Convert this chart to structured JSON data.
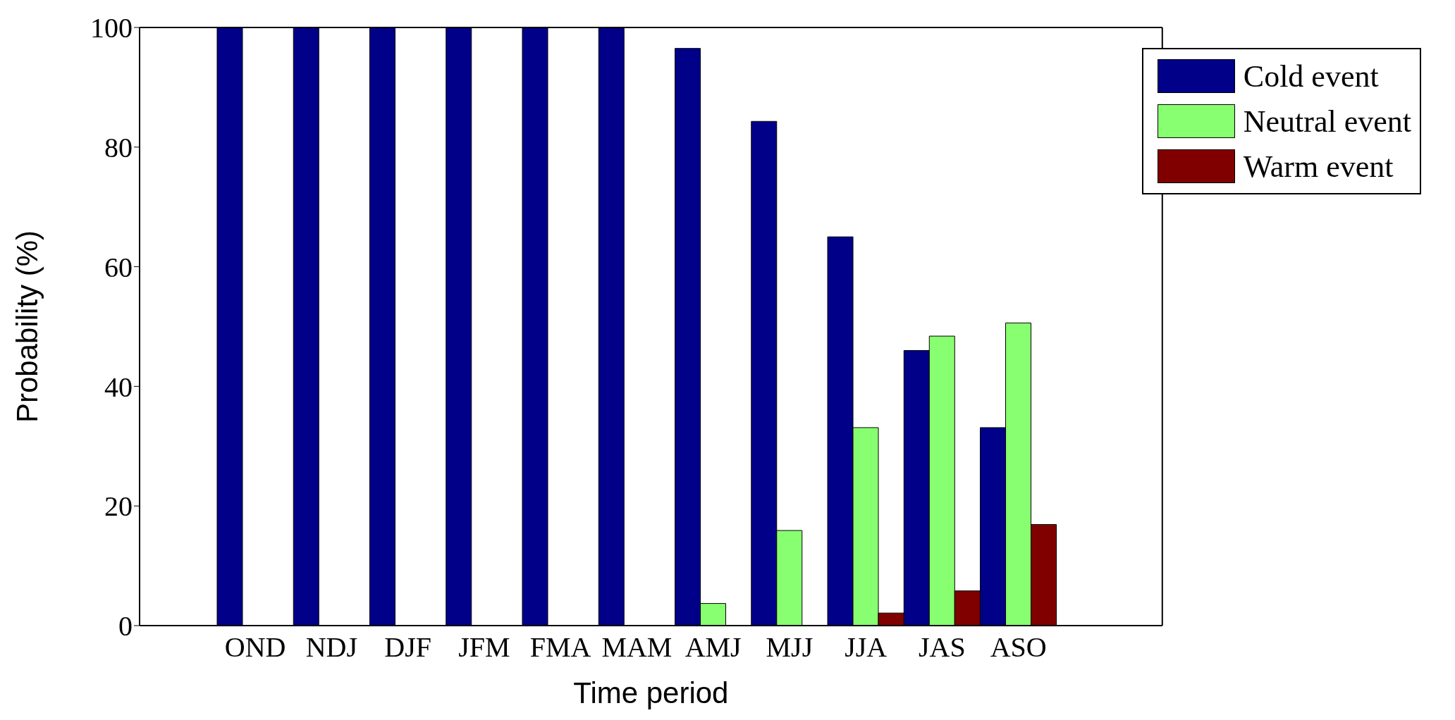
{
  "chart_data": {
    "type": "bar",
    "xlabel": "Time period",
    "ylabel": "Probability (%)",
    "categories": [
      "OND",
      "NDJ",
      "DJF",
      "JFM",
      "FMA",
      "MAM",
      "AMJ",
      "MJJ",
      "JJA",
      "JAS",
      "ASO"
    ],
    "series": [
      {
        "name": "Cold event",
        "color": "#000088",
        "values": [
          100,
          100,
          100,
          100,
          100,
          100,
          96.5,
          84.3,
          65,
          46,
          33.1
        ]
      },
      {
        "name": "Neutral event",
        "color": "#88ff70",
        "values": [
          0,
          0,
          0,
          0,
          0,
          0,
          3.7,
          15.9,
          33.1,
          48.4,
          50.6
        ]
      },
      {
        "name": "Warm event",
        "color": "#800000",
        "values": [
          0,
          0,
          0,
          0,
          0,
          0,
          0,
          0,
          2.1,
          5.8,
          16.9
        ]
      }
    ],
    "ylim": [
      0,
      100
    ],
    "yticks": [
      0,
      20,
      40,
      60,
      80,
      100
    ],
    "grid": false,
    "legend": "top right"
  }
}
